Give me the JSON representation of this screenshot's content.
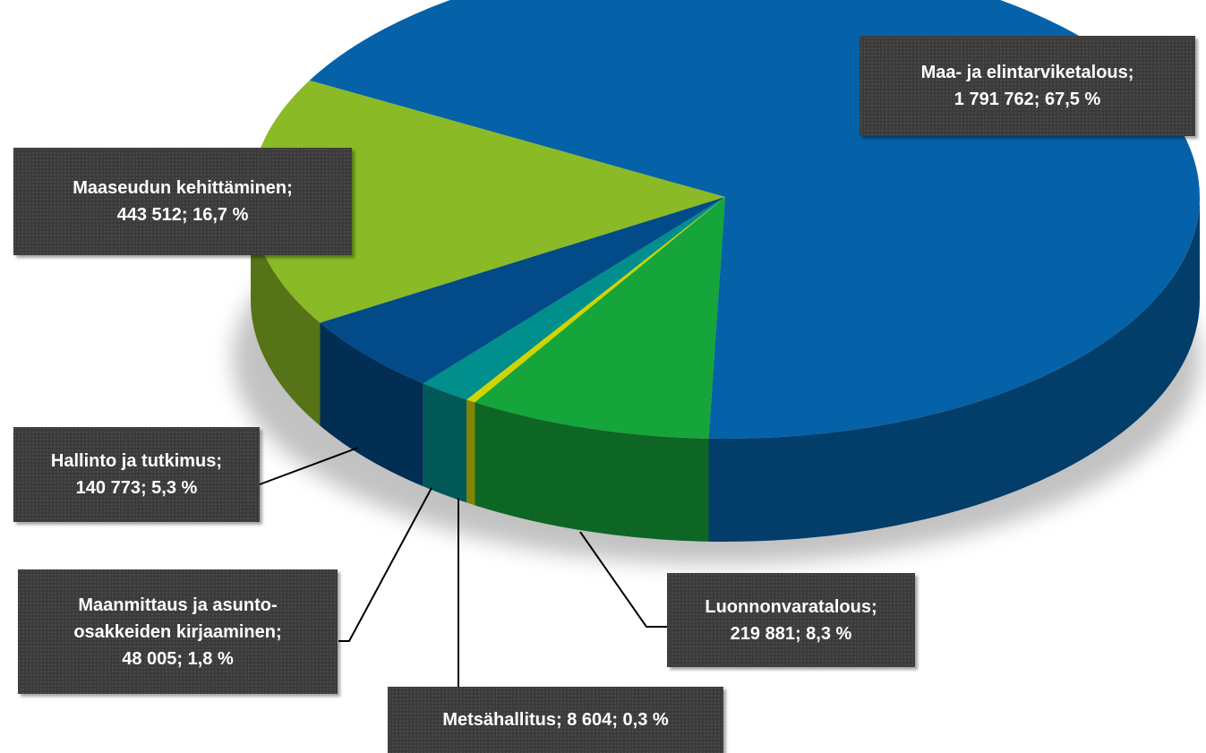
{
  "chart_data": {
    "type": "pie3d",
    "categories": [
      "Maa- ja elintarviketalous",
      "Maaseudun kehittäminen",
      "Hallinto ja tutkimus",
      "Maanmittaus ja asunto-osakkeiden kirjaaminen",
      "Metsähallitus",
      "Luonnonvaratalous"
    ],
    "values": [
      1791762,
      443512,
      140773,
      48005,
      8604,
      219881
    ],
    "value_labels": [
      "1 791 762",
      "443 512",
      "140 773",
      "48 005",
      "8 604",
      "219 881"
    ],
    "shares": [
      67.5,
      16.7,
      5.3,
      1.8,
      0.3,
      8.3
    ],
    "share_labels": [
      "67,5 %",
      "16,7 %",
      "5,3 %",
      "1,8 %",
      "0,3 %",
      "8,3 %"
    ],
    "colors": [
      "#0562a9",
      "#8aba25",
      "#034a88",
      "#008f8c",
      "#d2d400",
      "#15a53a"
    ]
  }
}
